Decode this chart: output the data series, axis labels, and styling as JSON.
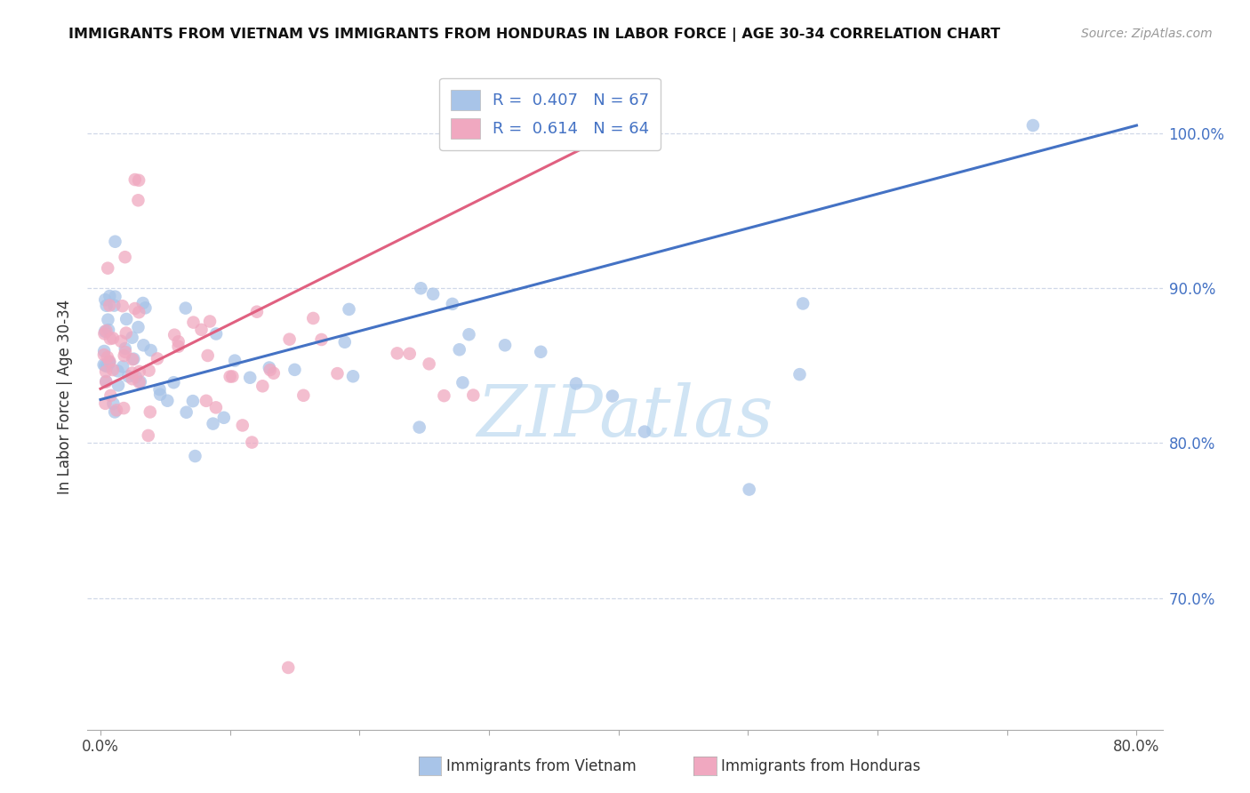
{
  "title": "IMMIGRANTS FROM VIETNAM VS IMMIGRANTS FROM HONDURAS IN LABOR FORCE | AGE 30-34 CORRELATION CHART",
  "source": "Source: ZipAtlas.com",
  "ylabel": "In Labor Force | Age 30-34",
  "xlim": [
    -0.01,
    0.82
  ],
  "ylim": [
    0.615,
    1.045
  ],
  "ytick_vals": [
    0.7,
    0.8,
    0.9,
    1.0
  ],
  "ytick_labels": [
    "70.0%",
    "80.0%",
    "90.0%",
    "100.0%"
  ],
  "xtick_vals": [
    0.0,
    0.1,
    0.2,
    0.3,
    0.4,
    0.5,
    0.6,
    0.7,
    0.8
  ],
  "legend_R1": "0.407",
  "legend_N1": "67",
  "legend_R2": "0.614",
  "legend_N2": "64",
  "color_vietnam": "#a8c4e8",
  "color_honduras": "#f0a8c0",
  "color_line_vietnam": "#4472c4",
  "color_line_honduras": "#e06080",
  "color_text_blue": "#4472c4",
  "color_grid": "#d0d8e8",
  "watermark_color": "#d0e4f4",
  "vietnam_line_x": [
    0.0,
    0.8
  ],
  "vietnam_line_y": [
    0.828,
    1.005
  ],
  "honduras_line_x": [
    0.0,
    0.42
  ],
  "honduras_line_y": [
    0.835,
    1.01
  ]
}
